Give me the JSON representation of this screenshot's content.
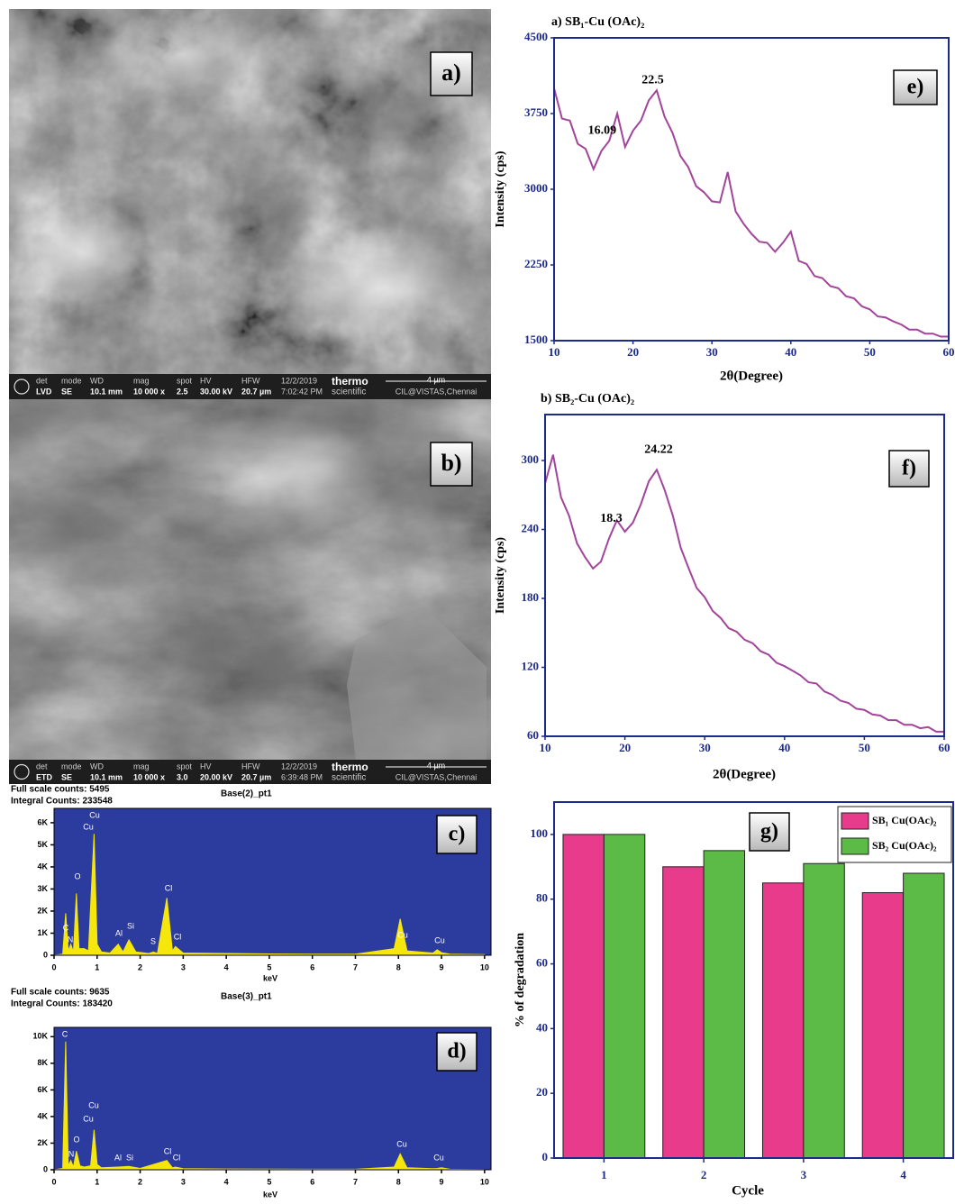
{
  "images": [
    {
      "label": "a)",
      "info": {
        "headers": [
          "det",
          "mode",
          "WD",
          "mag",
          "spot",
          "HV",
          "HFW"
        ],
        "values": [
          "LVD",
          "SE",
          "10.1 mm",
          "10 000 x",
          "2.5",
          "30.00 kV",
          "20.7 µm"
        ],
        "date": "12/2/2019",
        "time": "7:02:42 PM",
        "brand": [
          "thermo",
          "scientific"
        ],
        "scale": "4 µm",
        "lab": "CIL@VISTAS,Chennai"
      }
    },
    {
      "label": "b)",
      "info": {
        "headers": [
          "det",
          "mode",
          "WD",
          "mag",
          "spot",
          "HV",
          "HFW"
        ],
        "values": [
          "ETD",
          "SE",
          "10.1 mm",
          "10 000 x",
          "3.0",
          "20.00 kV",
          "20.7 µm"
        ],
        "date": "12/2/2019",
        "time": "6:39:48 PM",
        "brand": [
          "thermo",
          "scientific"
        ],
        "scale": "4 µm",
        "lab": "CIL@VISTAS,Chennai"
      }
    }
  ],
  "chart_data": [
    {
      "type": "line",
      "panel_label": "e)",
      "title": "a) SB₁-Cu (OAc)₂",
      "xlabel": "2θ(Degree)",
      "ylabel": "Intensity (cps)",
      "color": "#a3449b",
      "x": [
        10,
        11,
        12,
        13,
        14,
        15,
        16,
        17,
        18,
        19,
        20,
        21,
        22,
        23,
        24,
        25,
        26,
        27,
        28,
        29,
        30,
        31,
        32,
        33,
        34,
        35,
        36,
        37,
        38,
        39,
        40,
        41,
        42,
        43,
        44,
        45,
        46,
        47,
        48,
        49,
        50,
        51,
        52,
        53,
        54,
        55,
        56,
        57,
        58,
        59,
        60
      ],
      "values": [
        4000,
        3700,
        3680,
        3450,
        3400,
        3200,
        3380,
        3480,
        3750,
        3420,
        3580,
        3680,
        3880,
        3980,
        3720,
        3560,
        3330,
        3220,
        3030,
        2970,
        2880,
        2870,
        3170,
        2780,
        2660,
        2560,
        2480,
        2470,
        2380,
        2470,
        2580,
        2290,
        2260,
        2140,
        2120,
        2040,
        2020,
        1940,
        1920,
        1840,
        1810,
        1740,
        1730,
        1690,
        1660,
        1610,
        1610,
        1570,
        1570,
        1540,
        1540
      ],
      "annotations": [
        16.09,
        22.5
      ],
      "xlim": [
        10,
        60
      ],
      "ylim": [
        1500,
        4500
      ],
      "xticks": [
        10,
        20,
        30,
        40,
        50,
        60
      ],
      "yticks": [
        1500,
        2250,
        3000,
        3750,
        4500
      ]
    },
    {
      "type": "line",
      "panel_label": "f)",
      "title": "b) SB₂-Cu (OAc)₂",
      "xlabel": "2θ(Degree)",
      "ylabel": "Intensity (cps)",
      "color": "#a3449b",
      "x": [
        10,
        11,
        12,
        13,
        14,
        15,
        16,
        17,
        18,
        19,
        20,
        21,
        22,
        23,
        24,
        25,
        26,
        27,
        28,
        29,
        30,
        31,
        32,
        33,
        34,
        35,
        36,
        37,
        38,
        39,
        40,
        41,
        42,
        43,
        44,
        45,
        46,
        47,
        48,
        49,
        50,
        51,
        52,
        53,
        54,
        55,
        56,
        57,
        58,
        59,
        60
      ],
      "values": [
        280,
        305,
        268,
        252,
        228,
        216,
        206,
        212,
        232,
        248,
        238,
        246,
        262,
        282,
        292,
        274,
        252,
        224,
        206,
        189,
        181,
        169,
        163,
        154,
        151,
        144,
        141,
        134,
        131,
        124,
        121,
        117,
        113,
        107,
        106,
        99,
        96,
        91,
        89,
        84,
        83,
        79,
        78,
        74,
        74,
        70,
        70,
        67,
        68,
        64,
        64
      ],
      "annotations": [
        18.3,
        24.22
      ],
      "xlim": [
        10,
        60
      ],
      "ylim": [
        60,
        340
      ],
      "xticks": [
        10,
        20,
        30,
        40,
        50,
        60
      ],
      "yticks": [
        60,
        120,
        180,
        240,
        300
      ]
    },
    {
      "type": "bar",
      "panel_label": "g)",
      "xlabel": "Cycle",
      "ylabel": "% of degradation",
      "categories": [
        "1",
        "2",
        "3",
        "4"
      ],
      "series": [
        {
          "name": "SB₁ Cu(OAc)₂",
          "color": "#e83b8c",
          "values": [
            100,
            90,
            85,
            82
          ]
        },
        {
          "name": "SB₂ Cu(OAc)₂",
          "color": "#5cba47",
          "values": [
            100,
            95,
            91,
            88
          ]
        }
      ],
      "ylim": [
        0,
        110
      ],
      "yticks": [
        0,
        20,
        40,
        60,
        80,
        100
      ],
      "legend": "upper right"
    },
    {
      "type": "spectrum",
      "panel_label": "c)",
      "header": [
        "Full scale counts: 5495",
        "Integral Counts: 233548"
      ],
      "title": "Base(2)_pt1",
      "xlabel": "keV",
      "color": "#f5e60c",
      "background": "#2c3b9e",
      "x": [
        0,
        0.2,
        0.27,
        0.33,
        0.39,
        0.45,
        0.52,
        0.58,
        0.7,
        0.8,
        0.93,
        1.0,
        1.1,
        1.3,
        1.49,
        1.6,
        1.74,
        1.9,
        2.2,
        2.31,
        2.4,
        2.62,
        2.75,
        2.82,
        3.0,
        4,
        5,
        6,
        7,
        7.9,
        8.04,
        8.2,
        8.8,
        8.9,
        9.0,
        9.2,
        10
      ],
      "values": [
        0,
        50,
        1900,
        200,
        500,
        150,
        2800,
        300,
        300,
        200,
        5495,
        500,
        150,
        100,
        500,
        150,
        700,
        150,
        80,
        150,
        80,
        2600,
        200,
        400,
        100,
        80,
        60,
        50,
        50,
        300,
        1650,
        200,
        100,
        250,
        120,
        50,
        30
      ],
      "peak_labels": [
        "C",
        "N",
        "O",
        "Cu",
        "Cu",
        "Al",
        "Si",
        "S",
        "Cl",
        "Cl",
        "Cu",
        "Cu"
      ],
      "xlim": [
        0,
        10.15
      ],
      "ylim": [
        0,
        6650
      ],
      "xticks": [
        0,
        1,
        2,
        3,
        4,
        5,
        6,
        7,
        8,
        9,
        10
      ],
      "yticks": [
        0,
        {
          "value": 1000,
          "label": "1K"
        },
        {
          "value": 2000,
          "label": "2K"
        },
        {
          "value": 3000,
          "label": "3K"
        },
        {
          "value": 4000,
          "label": "4K"
        },
        {
          "value": 5000,
          "label": "5K"
        },
        {
          "value": 6000,
          "label": "6K"
        }
      ]
    },
    {
      "type": "spectrum",
      "panel_label": "d)",
      "header": [
        "Full scale counts: 9635",
        "Integral Counts: 183420"
      ],
      "title": "Base(3)_pt1",
      "xlabel": "keV",
      "color": "#f5e60c",
      "background": "#2c3b9e",
      "x": [
        0,
        0.2,
        0.27,
        0.33,
        0.39,
        0.45,
        0.52,
        0.6,
        0.7,
        0.85,
        0.93,
        1.0,
        1.1,
        1.49,
        1.74,
        2.0,
        2.62,
        2.75,
        2.82,
        3,
        4,
        5,
        6,
        7,
        7.9,
        8.04,
        8.2,
        8.8,
        8.9,
        9.0,
        9.2,
        10
      ],
      "values": [
        0,
        100,
        9635,
        300,
        700,
        200,
        1400,
        300,
        200,
        300,
        3000,
        400,
        150,
        200,
        250,
        100,
        700,
        150,
        200,
        80,
        60,
        50,
        40,
        40,
        200,
        1200,
        150,
        80,
        100,
        150,
        40,
        20
      ],
      "peak_labels": [
        "C",
        "N",
        "O",
        "Cu",
        "Cu",
        "Al",
        "Si",
        "Cl",
        "Cl",
        "Cu",
        "Cu"
      ],
      "xlim": [
        0,
        10.15
      ],
      "ylim": [
        0,
        10700
      ],
      "xticks": [
        0,
        1,
        2,
        3,
        4,
        5,
        6,
        7,
        8,
        9,
        10
      ],
      "yticks": [
        0,
        {
          "value": 2000,
          "label": "2K"
        },
        {
          "value": 4000,
          "label": "4K"
        },
        {
          "value": 6000,
          "label": "6K"
        },
        {
          "value": 8000,
          "label": "8K"
        },
        {
          "value": 10000,
          "label": "10K"
        }
      ]
    }
  ]
}
